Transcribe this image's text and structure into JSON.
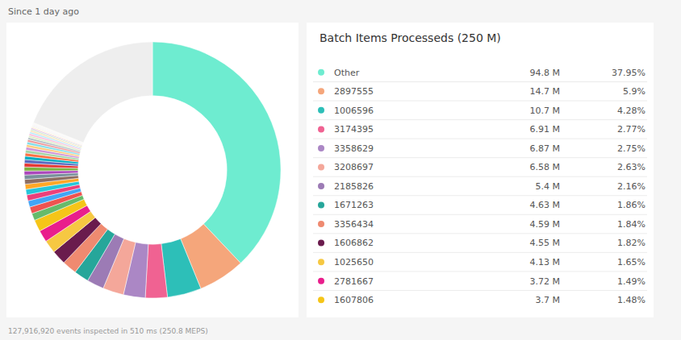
{
  "chart_data": {
    "type": "pie",
    "title": "Batch Items Processeds (250 M)",
    "subtitle": "Since 1 day ago",
    "annotations": [
      "127,916,920 events inspected in 510 ms (250.8 MEPS)"
    ],
    "categories": [
      "Other",
      "2897555",
      "1006596",
      "3174395",
      "3358629",
      "3208697",
      "2185826",
      "1671263",
      "3356434",
      "1606862",
      "1025650",
      "2781667",
      "1607806",
      null,
      null,
      null,
      null,
      null,
      null,
      null,
      null,
      null,
      null,
      null,
      null,
      null,
      null,
      null,
      null,
      null,
      null,
      null,
      null,
      null,
      null,
      null,
      null,
      null,
      null,
      null,
      null,
      null,
      null,
      null,
      null,
      null
    ],
    "values": [
      37.95,
      5.9,
      4.28,
      2.77,
      2.75,
      2.63,
      2.16,
      1.86,
      1.84,
      1.82,
      1.65,
      1.49,
      1.48,
      0.9,
      0.85,
      0.8,
      0.75,
      0.7,
      0.65,
      0.6,
      0.55,
      0.5,
      0.5,
      0.48,
      0.45,
      0.42,
      0.4,
      0.38,
      0.36,
      0.34,
      0.32,
      0.3,
      0.28,
      0.26,
      0.24,
      0.22,
      0.2,
      0.18,
      0.16,
      0.14,
      0.12,
      0.1,
      0.1,
      0.1,
      0.1,
      18.97
    ],
    "value_labels": [
      "37.95%",
      "5.9%",
      "4.28%",
      "2.77%",
      "2.75%",
      "2.63%",
      "2.16%",
      "1.86%",
      "1.84%",
      "1.82%",
      "1.65%",
      "1.49%",
      "1.48%",
      null,
      null,
      null,
      null,
      null,
      null,
      null,
      null,
      null,
      null,
      null,
      null,
      null,
      null,
      null,
      null,
      null,
      null,
      null,
      null,
      null,
      null,
      null,
      null,
      null,
      null,
      null,
      null,
      null,
      null,
      null,
      null,
      null
    ],
    "amount_labels": [
      "94.8 M",
      "14.7 M",
      "10.7 M",
      "6.91 M",
      "6.87 M",
      "6.58 M",
      "5.4 M",
      "4.63 M",
      "4.59 M",
      "4.55 M",
      "4.13 M",
      "3.72 M",
      "3.7 M",
      null,
      null,
      null,
      null,
      null,
      null,
      null,
      null,
      null,
      null,
      null,
      null,
      null,
      null,
      null,
      null,
      null,
      null,
      null,
      null,
      null,
      null,
      null,
      null,
      null,
      null,
      null,
      null,
      null,
      null,
      null,
      null,
      null
    ],
    "colors": [
      "#6EECD0",
      "#F5A67B",
      "#2DBFB8",
      "#F06292",
      "#AB87C5",
      "#F4A79A",
      "#9C7BB5",
      "#26A69A",
      "#EF8A70",
      "#6A1B4D",
      "#F6C842",
      "#E91E8C",
      "#F5C518",
      "#66BB6A",
      "#EF5350",
      "#42A5F5",
      "#EC407A",
      "#26C6DA",
      "#FFA726",
      "#8D6E63",
      "#78909C",
      "#AB47BC",
      "#7CB342",
      "#E53935",
      "#5C6BC0",
      "#00ACC1",
      "#FF7043",
      "#A5D6A7",
      "#CE93D8",
      "#FFCC80",
      "#80DEEA",
      "#EF9A9A",
      "#B0BEC5",
      "#DCEDC8",
      "#F8BBD9",
      "#B3E5FC",
      "#FFE0B2",
      "#C8E6C9",
      "#E1BEE7",
      "#FFF9C4",
      "#F3E5F5",
      "#E8F5E9",
      "#FBE9E7",
      "#E3F2FD",
      "#FFF3E0",
      "#EEEEEE"
    ]
  }
}
